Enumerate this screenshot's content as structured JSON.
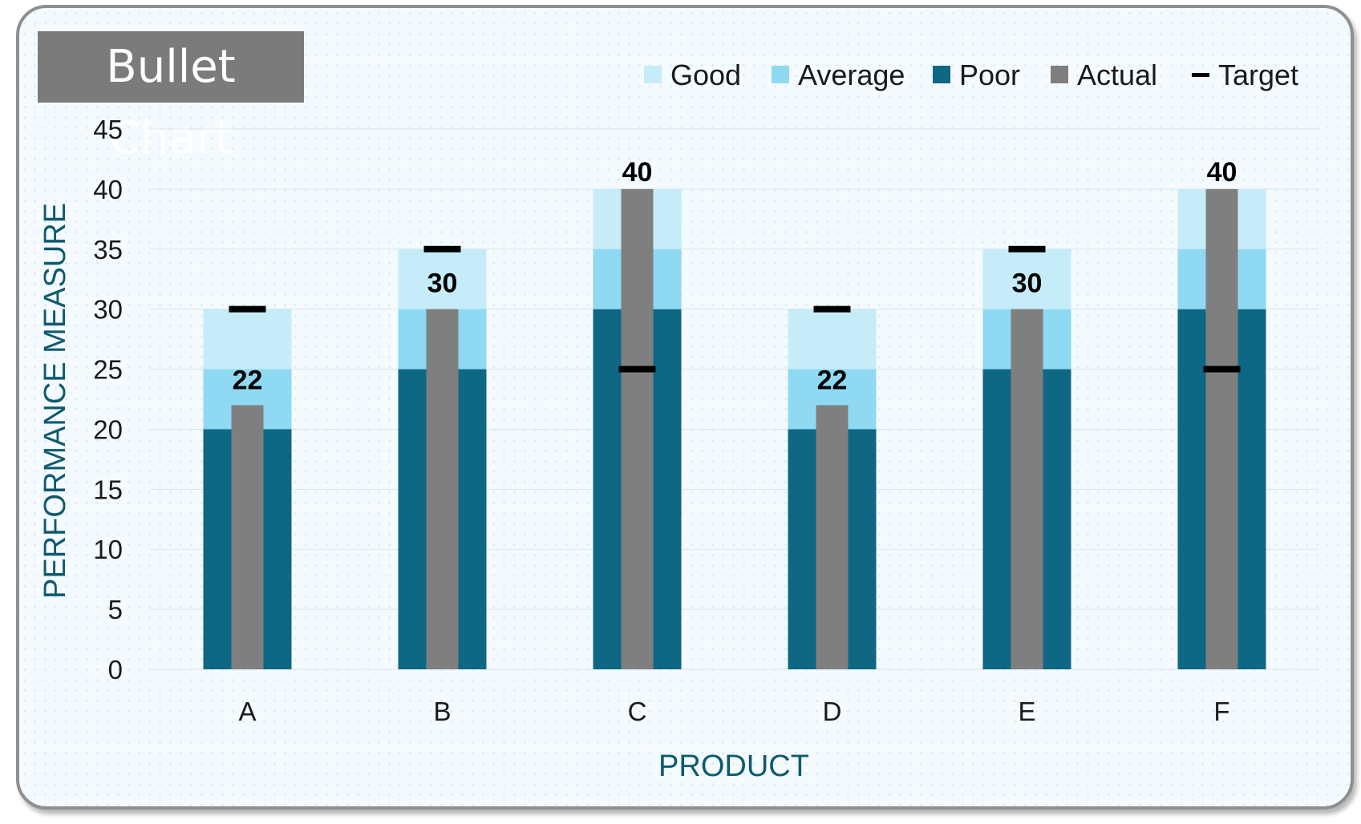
{
  "chart_data": {
    "type": "bar",
    "title": "Bullet Chart",
    "xlabel": "PRODUCT",
    "ylabel": "PERFORMANCE MEASURE",
    "ylim": [
      0,
      45
    ],
    "yticks": [
      0,
      5,
      10,
      15,
      20,
      25,
      30,
      35,
      40,
      45
    ],
    "categories": [
      "A",
      "B",
      "C",
      "D",
      "E",
      "F"
    ],
    "series": [
      {
        "name": "Poor",
        "kind": "band",
        "color": "#0e6884",
        "values": [
          20,
          25,
          30,
          20,
          25,
          30
        ]
      },
      {
        "name": "Average",
        "kind": "band",
        "color": "#8fd9f2",
        "values": [
          5,
          5,
          5,
          5,
          5,
          5
        ]
      },
      {
        "name": "Good",
        "kind": "band",
        "color": "#c6ecf9",
        "values": [
          5,
          5,
          5,
          5,
          5,
          5
        ]
      },
      {
        "name": "Actual",
        "kind": "bar",
        "color": "#7f7f7f",
        "values": [
          22,
          30,
          40,
          22,
          30,
          40
        ]
      },
      {
        "name": "Target",
        "kind": "marker",
        "color": "#000000",
        "values": [
          30,
          35,
          25,
          30,
          35,
          25
        ]
      }
    ],
    "data_labels": [
      "22",
      "30",
      "40",
      "22",
      "30",
      "40"
    ],
    "legend": {
      "position": "top-right",
      "items": [
        {
          "label": "Good",
          "color": "#c6ecf9",
          "symbol": "square"
        },
        {
          "label": "Average",
          "color": "#8fd9f2",
          "symbol": "square"
        },
        {
          "label": "Poor",
          "color": "#0e6884",
          "symbol": "square"
        },
        {
          "label": "Actual",
          "color": "#7f7f7f",
          "symbol": "square"
        },
        {
          "label": "Target",
          "color": "#000000",
          "symbol": "dash"
        }
      ]
    },
    "grid": true
  }
}
